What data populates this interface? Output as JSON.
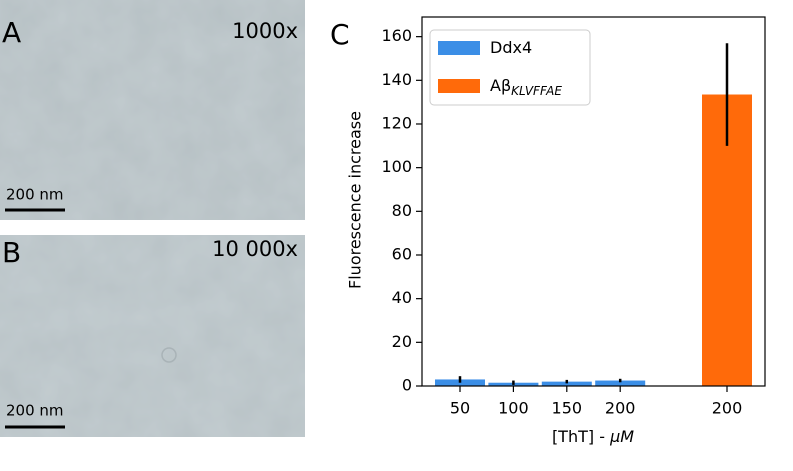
{
  "panels": [
    {
      "letter": "A",
      "magnification": "1000x",
      "scalebar": "200 nm"
    },
    {
      "letter": "B",
      "magnification": "10 000x",
      "scalebar": "200 nm"
    }
  ],
  "chart_data": {
    "type": "bar",
    "letter": "C",
    "ylabel": "Fluorescence increase",
    "xlabel": "[ThT] - ",
    "xlabel_unit": "μM",
    "categories": [
      50,
      100,
      150,
      200,
      null,
      200
    ],
    "series": [
      {
        "name": "Ddx4",
        "color": "#3b8ee6",
        "values": [
          3,
          1.5,
          2,
          2.5,
          null,
          null
        ],
        "errors": [
          1.5,
          1,
          0.8,
          0.8,
          null,
          null
        ]
      },
      {
        "name": "Aβ",
        "name_subscript": "KLVFFAE",
        "color": "#ff6a0a",
        "values": [
          null,
          null,
          null,
          null,
          null,
          133.5
        ],
        "errors": [
          null,
          null,
          null,
          null,
          null,
          23.5
        ]
      }
    ],
    "ylim": [
      0,
      169
    ],
    "yticks": [
      0,
      20,
      40,
      60,
      80,
      100,
      120,
      140,
      160
    ],
    "legend": "upper left"
  }
}
